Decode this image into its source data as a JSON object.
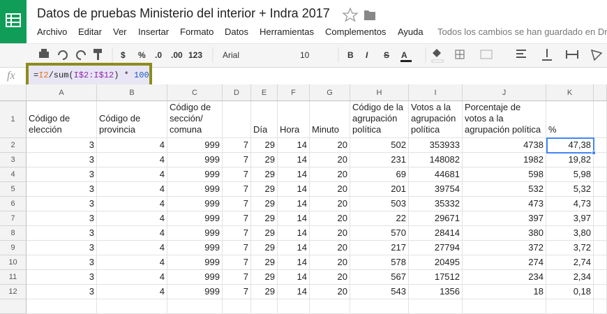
{
  "header": {
    "title": "Datos de pruebas Ministerio del interior + Indra 2017",
    "menu": [
      "Archivo",
      "Editar",
      "Ver",
      "Insertar",
      "Formato",
      "Datos",
      "Herramientas",
      "Complementos",
      "Ayuda"
    ],
    "status": "Todos los cambios se han guardado en Dr"
  },
  "toolbar": {
    "labels": [
      "$",
      "%",
      ".0",
      ".00",
      "123",
      "Arial",
      "10",
      "B",
      "I",
      "S",
      "A"
    ]
  },
  "formula_bar": {
    "label": "fx",
    "parts": [
      "=",
      "I2",
      "/sum(",
      "I$2:I$12",
      ") * ",
      "100"
    ]
  },
  "sheet": {
    "columns": [
      "A",
      "B",
      "C",
      "D",
      "E",
      "F",
      "G",
      "H",
      "I",
      "J",
      "K"
    ],
    "rows": [
      1,
      2,
      3,
      4,
      5,
      6,
      7,
      8,
      9,
      10,
      11,
      12
    ]
  },
  "table": {
    "header": [
      "Código de elección",
      "Código de provincia",
      "Código de sección/ comuna",
      null,
      "Día",
      "Hora",
      "Minuto",
      "Código de la agrupación política",
      "Votos a la agrupación política",
      "Porcentaje de votos a la agrupación política",
      "%"
    ],
    "rows": [
      [
        3,
        4,
        999,
        7,
        29,
        14,
        20,
        502,
        353933,
        4738,
        "47,38"
      ],
      [
        3,
        4,
        999,
        7,
        29,
        14,
        20,
        231,
        148082,
        1982,
        "19,82"
      ],
      [
        3,
        4,
        999,
        7,
        29,
        14,
        20,
        69,
        44681,
        598,
        "5,98"
      ],
      [
        3,
        4,
        999,
        7,
        29,
        14,
        20,
        201,
        39754,
        532,
        "5,32"
      ],
      [
        3,
        4,
        999,
        7,
        29,
        14,
        20,
        503,
        35332,
        473,
        "4,73"
      ],
      [
        3,
        4,
        999,
        7,
        29,
        14,
        20,
        22,
        29671,
        397,
        "3,97"
      ],
      [
        3,
        4,
        999,
        7,
        29,
        14,
        20,
        570,
        28414,
        380,
        "3,80"
      ],
      [
        3,
        4,
        999,
        7,
        29,
        14,
        20,
        217,
        27794,
        372,
        "3,72"
      ],
      [
        3,
        4,
        999,
        7,
        29,
        14,
        20,
        578,
        20495,
        274,
        "2,74"
      ],
      [
        3,
        4,
        999,
        7,
        29,
        14,
        20,
        567,
        17512,
        234,
        "2,34"
      ],
      [
        3,
        4,
        999,
        7,
        29,
        14,
        20,
        543,
        1356,
        18,
        "0,18"
      ]
    ]
  }
}
